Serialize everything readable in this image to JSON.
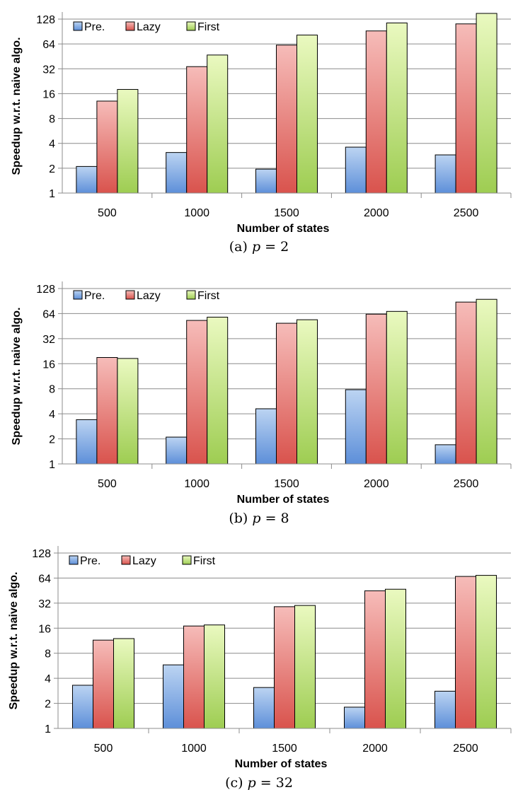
{
  "chart_data": [
    {
      "type": "bar",
      "caption": "(a)",
      "caption_var": "p",
      "caption_value": "= 2",
      "xlabel": "Number of states",
      "ylabel": "Speedup w.r.t. naive algo.",
      "yscale": "log2",
      "ylim": [
        1,
        128
      ],
      "yticks": [
        "1",
        "2",
        "4",
        "8",
        "16",
        "32",
        "64",
        "128"
      ],
      "categories": [
        "500",
        "1000",
        "1500",
        "2000",
        "2500"
      ],
      "legend_position": "top-left",
      "series": [
        {
          "name": "Pre.",
          "values": [
            2.1,
            3.1,
            1.95,
            3.6,
            2.9
          ]
        },
        {
          "name": "Lazy",
          "values": [
            13,
            34,
            62,
            92,
            112
          ]
        },
        {
          "name": "First",
          "values": [
            18,
            47,
            82,
            115,
            150
          ]
        }
      ]
    },
    {
      "type": "bar",
      "caption": "(b)",
      "caption_var": "p",
      "caption_value": "= 8",
      "xlabel": "Number of states",
      "ylabel": "Speedup w.r.t. naive algo.",
      "yscale": "log2",
      "ylim": [
        1,
        128
      ],
      "yticks": [
        "1",
        "2",
        "4",
        "8",
        "16",
        "32",
        "64",
        "128"
      ],
      "categories": [
        "500",
        "1000",
        "1500",
        "2000",
        "2500"
      ],
      "legend_position": "top-left",
      "series": [
        {
          "name": "Pre.",
          "values": [
            3.4,
            2.1,
            4.6,
            7.8,
            1.7
          ]
        },
        {
          "name": "Lazy",
          "values": [
            19,
            53,
            49,
            63,
            88
          ]
        },
        {
          "name": "First",
          "values": [
            18.5,
            58,
            54,
            68,
            95
          ]
        }
      ]
    },
    {
      "type": "bar",
      "caption": "(c)",
      "caption_var": "p",
      "caption_value": "= 32",
      "xlabel": "Number of states",
      "ylabel": "Speedup w.r.t. naive algo.",
      "yscale": "log2",
      "ylim": [
        1,
        128
      ],
      "yticks": [
        "1",
        "2",
        "4",
        "8",
        "16",
        "32",
        "64",
        "128"
      ],
      "categories": [
        "500",
        "1000",
        "1500",
        "2000",
        "2500"
      ],
      "legend_position": "top-left",
      "series": [
        {
          "name": "Pre.",
          "values": [
            3.3,
            5.8,
            3.1,
            1.8,
            2.8
          ]
        },
        {
          "name": "Lazy",
          "values": [
            11.5,
            17,
            29,
            45,
            67
          ]
        },
        {
          "name": "First",
          "values": [
            12,
            17.5,
            30,
            47,
            69
          ]
        }
      ]
    }
  ],
  "colors": {
    "pre": [
      "#bcd4f2",
      "#5d8fd9"
    ],
    "lazy": [
      "#f6bcb9",
      "#d9534d"
    ],
    "first": [
      "#eaf9c0",
      "#9ecd52"
    ],
    "gridline": "#8c8c8c",
    "axis": "#8c8c8c"
  }
}
